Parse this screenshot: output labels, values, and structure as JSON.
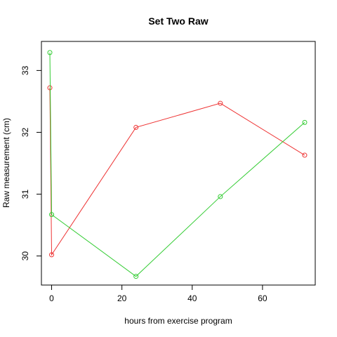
{
  "chart_data": {
    "type": "line",
    "title": "Set Two Raw",
    "xlabel": "hours from exercise program",
    "ylabel": "Raw measurement (cm)",
    "xlim": [
      -2.9,
      75
    ],
    "ylim": [
      29.53,
      33.47
    ],
    "x_ticks": [
      0,
      20,
      40,
      60
    ],
    "y_ticks": [
      30,
      31,
      32,
      33
    ],
    "grid": false,
    "legend": "none",
    "series": [
      {
        "color": "#ee3333",
        "points": [
          {
            "x": -0.5,
            "y": 32.72
          },
          {
            "x": 0,
            "y": 30.02
          },
          {
            "x": 24,
            "y": 32.08
          },
          {
            "x": 48,
            "y": 32.47
          },
          {
            "x": 72,
            "y": 31.63
          }
        ]
      },
      {
        "color": "#33cc33",
        "points": [
          {
            "x": -0.5,
            "y": 33.29
          },
          {
            "x": 0,
            "y": 30.67
          },
          {
            "x": 24,
            "y": 29.67
          },
          {
            "x": 48,
            "y": 30.96
          },
          {
            "x": 72,
            "y": 32.16
          }
        ]
      }
    ]
  }
}
